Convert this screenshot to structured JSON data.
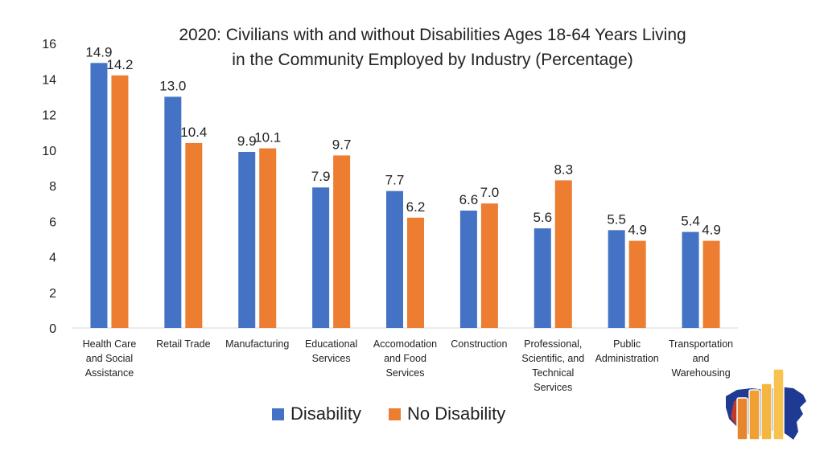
{
  "chart_data": {
    "type": "bar",
    "title_line1": "2020: Civilians with and without Disabilities Ages 18-64 Years Living",
    "title_line2": "in the Community Employed by Industry (Percentage)",
    "xlabel": "",
    "ylabel": "",
    "ylim": [
      0,
      16
    ],
    "yticks": [
      0,
      2,
      4,
      6,
      8,
      10,
      12,
      14,
      16
    ],
    "grid": false,
    "legend_position": "bottom",
    "categories": [
      [
        "Health Care",
        "and Social",
        "Assistance"
      ],
      [
        "Retail Trade"
      ],
      [
        "Manufacturing"
      ],
      [
        "Educational",
        "Services"
      ],
      [
        "Accomodation",
        "and Food",
        "Services"
      ],
      [
        "Construction"
      ],
      [
        "Professional,",
        "Scientific, and",
        "Technical",
        "Services"
      ],
      [
        "Public",
        "Administration"
      ],
      [
        "Transportation",
        "and",
        "Warehousing"
      ]
    ],
    "series": [
      {
        "name": "Disability",
        "color": "#4472C4",
        "values": [
          14.9,
          13.0,
          9.9,
          7.9,
          7.7,
          6.6,
          5.6,
          5.5,
          5.4
        ],
        "labels": [
          "14.9",
          "13.0",
          "9.9",
          "7.9",
          "7.7",
          "6.6",
          "5.6",
          "5.5",
          "5.4"
        ]
      },
      {
        "name": "No Disability",
        "color": "#ED7D31",
        "values": [
          14.2,
          10.4,
          10.1,
          9.7,
          6.2,
          7.0,
          8.3,
          4.9,
          4.9
        ],
        "labels": [
          "14.2",
          "10.4",
          "10.1",
          "9.7",
          "6.2",
          "7.0",
          "8.3",
          "4.9",
          "4.9"
        ]
      }
    ]
  },
  "logo": {
    "name": "state-data-logo",
    "colors": [
      "#1F3A93",
      "#C0392B",
      "#F5A623"
    ]
  }
}
